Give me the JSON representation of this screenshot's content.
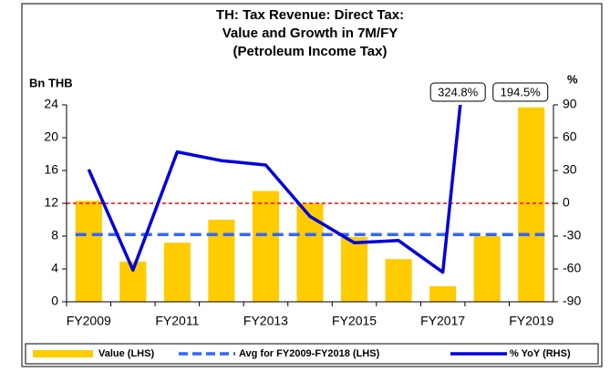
{
  "chart_data": {
    "type": "bar_line",
    "title": [
      "TH: Tax Revenue: Direct Tax:",
      "Value and Growth in 7M/FY",
      "(Petroleum Income Tax)"
    ],
    "ylabel": "Bn THB",
    "y2label": "%",
    "categories": [
      "FY2009",
      null,
      "FY2011",
      null,
      "FY2013",
      null,
      "FY2015",
      null,
      "FY2017",
      null,
      "FY2019"
    ],
    "series": [
      {
        "name": "Value (LHS)",
        "color": "#ffcc00",
        "type": "bar",
        "values": [
          12.3,
          4.9,
          7.2,
          10.0,
          13.5,
          12.0,
          7.9,
          5.2,
          1.9,
          8.0,
          23.7
        ]
      },
      {
        "name": "% YoY (RHS)",
        "color": "#0000dd",
        "type": "line",
        "axis": "y2",
        "values": [
          31,
          -61,
          47,
          39,
          35,
          -12,
          -36,
          -34,
          -63,
          324.8,
          194.5
        ],
        "value_labels": [
          null,
          null,
          null,
          null,
          null,
          null,
          null,
          null,
          null,
          "324.8%",
          "194.5%"
        ]
      }
    ],
    "avg_line": {
      "name": "Avg for FY2009-FY2018 (LHS)",
      "value": 8.2,
      "color": "#3366ff"
    },
    "zero_line_color": "#ff0000",
    "ylim": [
      0,
      24
    ],
    "yticks": [
      0,
      4,
      8,
      12,
      16,
      20,
      24
    ],
    "y2lim": [
      -90,
      90
    ],
    "y2ticks": [
      -90,
      -60,
      -30,
      0,
      30,
      60,
      90
    ]
  }
}
